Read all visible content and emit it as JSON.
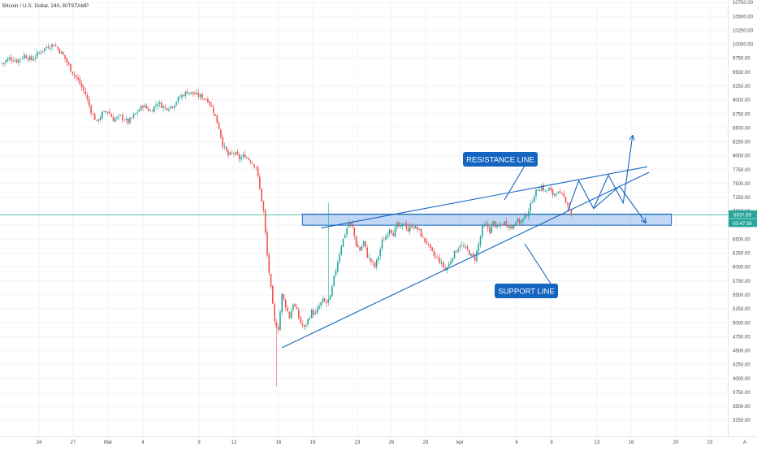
{
  "header": {
    "title": "Bitcoin / U.S. Dollar, 240, BITSTAMP"
  },
  "annotations": {
    "resistance": "RESISTANCE LINE",
    "support": "SUPPORT LINE"
  },
  "price_tag": {
    "price": "6937.69",
    "countdown": "03:47:56"
  },
  "colors": {
    "up": "#26a69a",
    "down": "#ef5350",
    "annotation": "#1565c0",
    "zone_fill": "#90b4ec",
    "price_line": "#26a69a",
    "background": "#ffffff"
  },
  "chart_data": {
    "type": "candlestick",
    "title": "Bitcoin / U.S. Dollar, 240, BITSTAMP",
    "ylim": [
      3250,
      10750
    ],
    "y_ticks": [
      "10750.00",
      "10500.00",
      "10250.00",
      "10000.00",
      "9750.00",
      "9500.00",
      "9250.00",
      "9000.00",
      "8750.00",
      "8500.00",
      "8250.00",
      "8000.00",
      "7750.00",
      "7500.00",
      "7250.00",
      "7000.00",
      "6750.00",
      "6500.00",
      "6250.00",
      "6000.00",
      "5750.00",
      "5500.00",
      "5250.00",
      "5000.00",
      "4750.00",
      "4500.00",
      "4250.00",
      "4000.00",
      "3750.00",
      "3500.00",
      "3250.00"
    ],
    "x_ticks": [
      "24",
      "27",
      "Mar",
      "4",
      "9",
      "12",
      "16",
      "19",
      "23",
      "26",
      "29",
      "Apr",
      "6",
      "9",
      "13",
      "16",
      "20",
      "23"
    ],
    "candle_path": [
      [
        0,
        9650
      ],
      [
        4,
        9750
      ],
      [
        8,
        9700
      ],
      [
        12,
        9800
      ],
      [
        16,
        9720
      ],
      [
        20,
        9850
      ],
      [
        24,
        9950
      ],
      [
        28,
        10000
      ],
      [
        33,
        9800
      ],
      [
        37,
        9550
      ],
      [
        41,
        9350
      ],
      [
        45,
        9100
      ],
      [
        48,
        8800
      ],
      [
        51,
        8600
      ],
      [
        54,
        8750
      ],
      [
        57,
        8800
      ],
      [
        60,
        8650
      ],
      [
        64,
        8700
      ],
      [
        68,
        8600
      ],
      [
        72,
        8750
      ],
      [
        76,
        8900
      ],
      [
        80,
        8800
      ],
      [
        84,
        8950
      ],
      [
        88,
        8850
      ],
      [
        92,
        8900
      ],
      [
        96,
        9050
      ],
      [
        100,
        9150
      ],
      [
        104,
        9100
      ],
      [
        108,
        9050
      ],
      [
        111,
        9000
      ],
      [
        114,
        8800
      ],
      [
        117,
        8500
      ],
      [
        119,
        8200
      ],
      [
        122,
        8000
      ],
      [
        125,
        8050
      ],
      [
        128,
        7950
      ],
      [
        131,
        8000
      ],
      [
        134,
        7900
      ],
      [
        137,
        7800
      ],
      [
        139,
        7400
      ],
      [
        141,
        7000
      ],
      [
        143,
        6200
      ],
      [
        145,
        5600
      ],
      [
        147,
        5000
      ],
      [
        149,
        4900
      ],
      [
        151,
        5500
      ],
      [
        153,
        5300
      ],
      [
        155,
        5100
      ],
      [
        157,
        5350
      ],
      [
        159,
        5200
      ],
      [
        161,
        5000
      ],
      [
        163,
        4900
      ],
      [
        165,
        5050
      ],
      [
        167,
        5200
      ],
      [
        169,
        5150
      ],
      [
        171,
        5300
      ],
      [
        173,
        5400
      ],
      [
        175,
        5350
      ],
      [
        177,
        5450
      ],
      [
        179,
        5800
      ],
      [
        181,
        6100
      ],
      [
        183,
        6400
      ],
      [
        185,
        6600
      ],
      [
        187,
        6800
      ],
      [
        189,
        6700
      ],
      [
        191,
        6400
      ],
      [
        193,
        6300
      ],
      [
        195,
        6450
      ],
      [
        197,
        6200
      ],
      [
        199,
        6100
      ],
      [
        201,
        6000
      ],
      [
        203,
        6200
      ],
      [
        205,
        6450
      ],
      [
        207,
        6550
      ],
      [
        209,
        6700
      ],
      [
        211,
        6600
      ],
      [
        213,
        6750
      ],
      [
        215,
        6700
      ],
      [
        217,
        6800
      ],
      [
        219,
        6650
      ],
      [
        221,
        6750
      ],
      [
        223,
        6700
      ],
      [
        225,
        6650
      ],
      [
        227,
        6500
      ],
      [
        229,
        6450
      ],
      [
        231,
        6300
      ],
      [
        233,
        6200
      ],
      [
        235,
        6150
      ],
      [
        237,
        6050
      ],
      [
        239,
        5950
      ],
      [
        241,
        6050
      ],
      [
        243,
        6200
      ],
      [
        245,
        6300
      ],
      [
        247,
        6400
      ],
      [
        249,
        6350
      ],
      [
        251,
        6300
      ],
      [
        253,
        6200
      ],
      [
        255,
        6150
      ],
      [
        257,
        6400
      ],
      [
        259,
        6700
      ],
      [
        261,
        6750
      ],
      [
        263,
        6650
      ],
      [
        265,
        6800
      ],
      [
        267,
        6700
      ],
      [
        269,
        6750
      ],
      [
        271,
        6800
      ],
      [
        273,
        6750
      ],
      [
        275,
        6700
      ],
      [
        277,
        6850
      ],
      [
        279,
        6800
      ],
      [
        281,
        6850
      ],
      [
        283,
        6950
      ],
      [
        285,
        7100
      ],
      [
        287,
        7300
      ],
      [
        289,
        7400
      ],
      [
        291,
        7450
      ],
      [
        293,
        7350
      ],
      [
        295,
        7400
      ],
      [
        297,
        7300
      ],
      [
        299,
        7350
      ],
      [
        301,
        7300
      ],
      [
        303,
        7250
      ],
      [
        305,
        7150
      ],
      [
        307,
        6950
      ]
    ],
    "last_price": 6937.69,
    "resistance_line": {
      "from": [
        172,
        6700
      ],
      "to": [
        348,
        7800
      ]
    },
    "support_line": {
      "from": [
        151,
        4550
      ],
      "to": [
        349,
        7700
      ]
    },
    "support_zone": {
      "y_low": 6750,
      "y_high": 6950,
      "x_from": 162,
      "x_to": 361
    },
    "projection_path": [
      [
        305,
        7000
      ],
      [
        311,
        7550
      ],
      [
        319,
        7050
      ],
      [
        327,
        7650
      ],
      [
        335,
        7150
      ],
      [
        340,
        8350
      ]
    ],
    "alt_projection_path": [
      [
        319,
        7050
      ],
      [
        333,
        7450
      ],
      [
        347,
        6800
      ]
    ]
  }
}
